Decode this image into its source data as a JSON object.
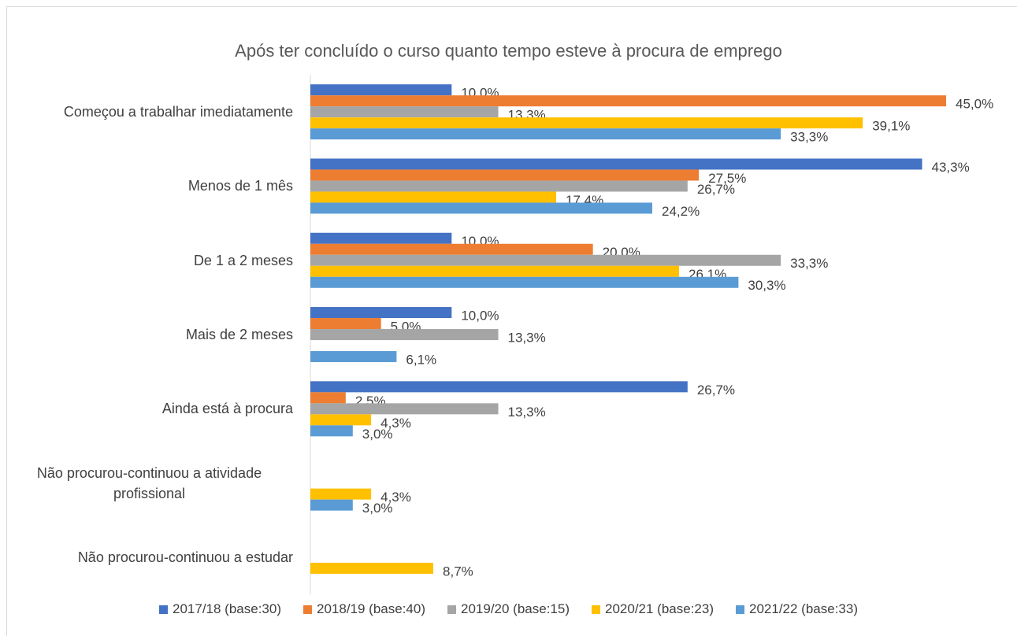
{
  "chart_data": {
    "type": "bar",
    "orientation": "horizontal",
    "title": "Após ter concluído o curso quanto tempo esteve à procura de emprego",
    "categories": [
      "Começou a trabalhar imediatamente",
      "Menos de 1 mês",
      "De 1 a 2 meses",
      "Mais de 2 meses",
      "Ainda está à procura",
      "Não procurou-continuou a atividade profissional",
      "Não procurou-continuou a estudar"
    ],
    "series": [
      {
        "name": "2017/18 (base:30)",
        "color": "#4472c4",
        "values": [
          10.0,
          43.3,
          10.0,
          10.0,
          26.7,
          null,
          null
        ],
        "value_labels": [
          "10,0%",
          "43,3%",
          "10,0%",
          "10,0%",
          "26,7%",
          null,
          null
        ]
      },
      {
        "name": "2018/19 (base:40)",
        "color": "#ed7d31",
        "values": [
          45.0,
          27.5,
          20.0,
          5.0,
          2.5,
          null,
          null
        ],
        "value_labels": [
          "45,0%",
          "27,5%",
          "20,0%",
          "5,0%",
          "2,5%",
          null,
          null
        ]
      },
      {
        "name": "2019/20 (base:15)",
        "color": "#a5a5a5",
        "values": [
          13.3,
          26.7,
          33.3,
          13.3,
          13.3,
          null,
          null
        ],
        "value_labels": [
          "13,3%",
          "26,7%",
          "33,3%",
          "13,3%",
          "13,3%",
          null,
          null
        ]
      },
      {
        "name": "2020/21 (base:23)",
        "color": "#ffc000",
        "values": [
          39.1,
          17.4,
          26.1,
          null,
          4.3,
          4.3,
          8.7
        ],
        "value_labels": [
          "39,1%",
          "17,4%",
          "26,1%",
          null,
          "4,3%",
          "4,3%",
          "8,7%"
        ]
      },
      {
        "name": "2021/22 (base:33)",
        "color": "#5b9bd5",
        "values": [
          33.3,
          24.2,
          30.3,
          6.1,
          3.0,
          3.0,
          null
        ],
        "value_labels": [
          "33,3%",
          "24,2%",
          "30,3%",
          "6,1%",
          "3,0%",
          "3,0%",
          null
        ]
      }
    ],
    "legend": "bottom"
  }
}
